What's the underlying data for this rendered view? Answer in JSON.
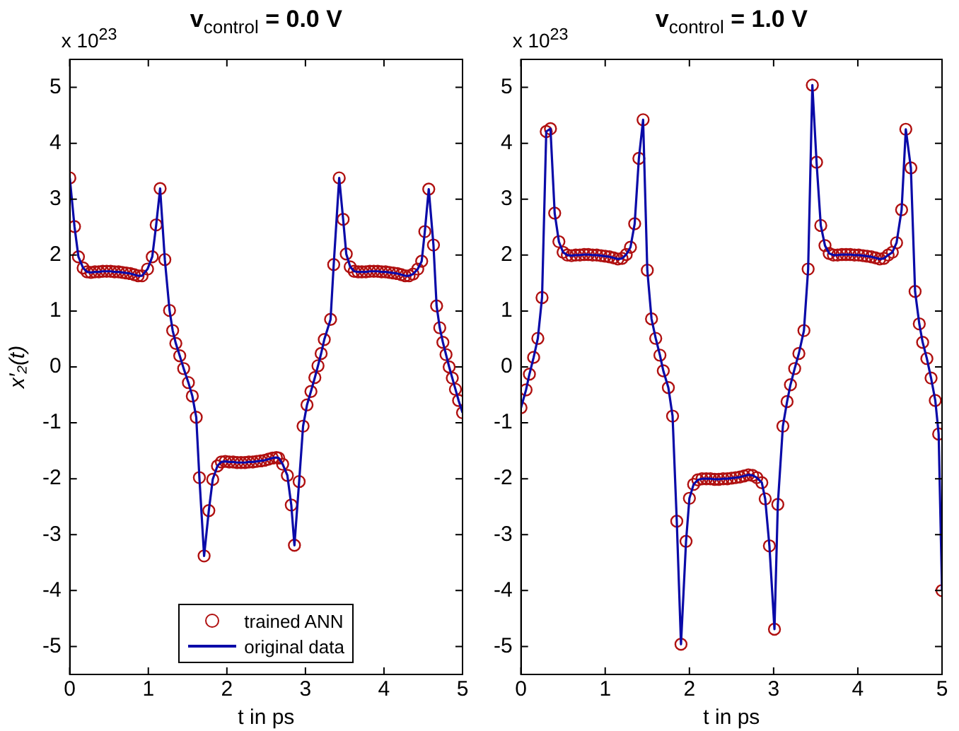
{
  "chart_data": [
    {
      "type": "line",
      "title": "v$_{control}$ = 0.0 V",
      "xlabel": "t in ps",
      "ylabel": "x′₂(t)",
      "annotations": [
        "x 10$^{23}$"
      ],
      "xlim": [
        0,
        5
      ],
      "xticks": [
        0,
        1,
        2,
        3,
        4,
        5
      ],
      "ylim": [
        -5.5,
        5.5
      ],
      "yticks": [
        -5,
        -4,
        -3,
        -2,
        -1,
        0,
        1,
        2,
        3,
        4,
        5
      ],
      "grid": false,
      "legend": "bottom",
      "x": [
        0,
        0.06,
        0.11,
        0.17,
        0.22,
        0.27,
        0.32,
        0.37,
        0.42,
        0.47,
        0.52,
        0.57,
        0.62,
        0.67,
        0.72,
        0.77,
        0.82,
        0.87,
        0.92,
        0.99,
        1.05,
        1.1,
        1.15,
        1.21,
        1.27,
        1.31,
        1.35,
        1.4,
        1.45,
        1.51,
        1.56,
        1.61,
        1.65,
        1.71,
        1.77,
        1.82,
        1.88,
        1.93,
        1.98,
        2.03,
        2.08,
        2.13,
        2.18,
        2.23,
        2.28,
        2.33,
        2.38,
        2.43,
        2.48,
        2.53,
        2.58,
        2.63,
        2.66,
        2.71,
        2.77,
        2.82,
        2.86,
        2.92,
        2.97,
        3.02,
        3.07,
        3.12,
        3.16,
        3.2,
        3.24,
        3.32,
        3.36,
        3.43,
        3.48,
        3.52,
        3.57,
        3.62,
        3.67,
        3.72,
        3.77,
        3.82,
        3.87,
        3.92,
        3.97,
        4.02,
        4.07,
        4.12,
        4.17,
        4.22,
        4.27,
        4.32,
        4.37,
        4.43,
        4.48,
        4.52,
        4.57,
        4.63,
        4.67,
        4.71,
        4.75,
        4.79,
        4.83,
        4.87,
        4.91,
        4.95,
        5.0
      ],
      "series": [
        {
          "name": "trained ANN",
          "type": "scatter",
          "marker": "circle",
          "color": "#b01010",
          "values": [
            3.38,
            2.51,
            1.97,
            1.77,
            1.7,
            1.69,
            1.7,
            1.7,
            1.71,
            1.71,
            1.71,
            1.7,
            1.7,
            1.69,
            1.68,
            1.67,
            1.65,
            1.63,
            1.63,
            1.75,
            1.97,
            2.54,
            3.19,
            1.92,
            1.01,
            0.65,
            0.42,
            0.2,
            -0.03,
            -0.28,
            -0.52,
            -0.9,
            -1.98,
            -3.38,
            -2.57,
            -2.01,
            -1.77,
            -1.7,
            -1.69,
            -1.7,
            -1.7,
            -1.71,
            -1.71,
            -1.71,
            -1.7,
            -1.7,
            -1.69,
            -1.68,
            -1.67,
            -1.65,
            -1.63,
            -1.62,
            -1.63,
            -1.74,
            -1.94,
            -2.47,
            -3.19,
            -2.05,
            -1.06,
            -0.68,
            -0.44,
            -0.19,
            0.02,
            0.24,
            0.49,
            0.85,
            1.83,
            3.38,
            2.64,
            2.02,
            1.79,
            1.71,
            1.7,
            1.7,
            1.7,
            1.71,
            1.71,
            1.71,
            1.7,
            1.7,
            1.69,
            1.68,
            1.67,
            1.65,
            1.63,
            1.63,
            1.66,
            1.75,
            1.89,
            2.42,
            3.18,
            2.18,
            1.09,
            0.7,
            0.44,
            0.22,
            0.0,
            -0.2,
            -0.4,
            -0.6,
            -0.82
          ]
        },
        {
          "name": "original data",
          "type": "line",
          "marker": "none",
          "line_style": "solid",
          "color": "#0a0aa8",
          "values": [
            3.38,
            2.51,
            1.97,
            1.77,
            1.7,
            1.69,
            1.7,
            1.7,
            1.71,
            1.71,
            1.71,
            1.7,
            1.7,
            1.69,
            1.68,
            1.67,
            1.65,
            1.63,
            1.63,
            1.75,
            1.97,
            2.54,
            3.19,
            1.92,
            1.01,
            0.65,
            0.42,
            0.2,
            -0.03,
            -0.28,
            -0.52,
            -0.9,
            -1.98,
            -3.38,
            -2.57,
            -2.01,
            -1.77,
            -1.7,
            -1.69,
            -1.7,
            -1.7,
            -1.71,
            -1.71,
            -1.71,
            -1.7,
            -1.7,
            -1.69,
            -1.68,
            -1.67,
            -1.65,
            -1.63,
            -1.62,
            -1.63,
            -1.74,
            -1.94,
            -2.47,
            -3.19,
            -2.05,
            -1.06,
            -0.68,
            -0.44,
            -0.19,
            0.02,
            0.24,
            0.49,
            0.85,
            1.83,
            3.38,
            2.64,
            2.02,
            1.79,
            1.71,
            1.7,
            1.7,
            1.7,
            1.71,
            1.71,
            1.71,
            1.7,
            1.7,
            1.69,
            1.68,
            1.67,
            1.65,
            1.63,
            1.63,
            1.66,
            1.75,
            1.89,
            2.42,
            3.18,
            2.18,
            1.09,
            0.7,
            0.44,
            0.22,
            0.0,
            -0.2,
            -0.4,
            -0.6,
            -0.82
          ]
        }
      ]
    },
    {
      "type": "line",
      "title": "v$_{control}$ = 1.0 V",
      "xlabel": "t in ps",
      "annotations": [
        "x 10$^{23}$"
      ],
      "xlim": [
        0,
        5
      ],
      "xticks": [
        0,
        1,
        2,
        3,
        4,
        5
      ],
      "ylim": [
        -5.5,
        5.5
      ],
      "yticks": [
        -5,
        -4,
        -3,
        -2,
        -1,
        0,
        1,
        2,
        3,
        4,
        5
      ],
      "grid": false,
      "x": [
        0,
        0.06,
        0.1,
        0.15,
        0.2,
        0.25,
        0.3,
        0.35,
        0.4,
        0.45,
        0.5,
        0.55,
        0.6,
        0.65,
        0.7,
        0.75,
        0.8,
        0.85,
        0.9,
        0.95,
        1.0,
        1.05,
        1.1,
        1.15,
        1.2,
        1.25,
        1.3,
        1.35,
        1.4,
        1.45,
        1.5,
        1.55,
        1.6,
        1.65,
        1.69,
        1.75,
        1.8,
        1.85,
        1.9,
        1.96,
        2.0,
        2.05,
        2.1,
        2.15,
        2.2,
        2.25,
        2.3,
        2.35,
        2.4,
        2.45,
        2.5,
        2.55,
        2.6,
        2.65,
        2.7,
        2.75,
        2.8,
        2.86,
        2.9,
        2.95,
        3.01,
        3.05,
        3.11,
        3.16,
        3.2,
        3.25,
        3.3,
        3.36,
        3.41,
        3.46,
        3.51,
        3.56,
        3.61,
        3.66,
        3.71,
        3.76,
        3.81,
        3.86,
        3.91,
        3.96,
        4.01,
        4.06,
        4.11,
        4.16,
        4.21,
        4.26,
        4.31,
        4.36,
        4.41,
        4.46,
        4.52,
        4.57,
        4.63,
        4.68,
        4.73,
        4.77,
        4.82,
        4.87,
        4.92,
        4.96,
        5.0
      ],
      "series": [
        {
          "type": "scatter",
          "marker": "circle",
          "color": "#b01010",
          "values": [
            -0.73,
            -0.41,
            -0.13,
            0.17,
            0.51,
            1.24,
            4.21,
            4.26,
            2.75,
            2.24,
            2.05,
            2.0,
            1.99,
            2.0,
            2.0,
            2.01,
            2.01,
            2.0,
            2.0,
            1.99,
            1.98,
            1.97,
            1.95,
            1.93,
            1.94,
            2.01,
            2.14,
            2.56,
            3.73,
            4.42,
            1.73,
            0.86,
            0.51,
            0.21,
            -0.07,
            -0.37,
            -0.88,
            -2.76,
            -4.96,
            -3.12,
            -2.35,
            -2.1,
            -2.02,
            -2.0,
            -2.0,
            -2.0,
            -2.01,
            -2.01,
            -2.0,
            -2.0,
            -1.99,
            -1.98,
            -1.97,
            -1.95,
            -1.93,
            -1.94,
            -1.98,
            -2.07,
            -2.36,
            -3.2,
            -4.69,
            -2.46,
            -1.06,
            -0.62,
            -0.32,
            -0.03,
            0.24,
            0.65,
            1.75,
            5.04,
            3.66,
            2.53,
            2.17,
            2.03,
            2.0,
            2.0,
            2.01,
            2.01,
            2.01,
            2.0,
            2.0,
            1.99,
            1.98,
            1.97,
            1.95,
            1.93,
            1.94,
            2.0,
            2.05,
            2.22,
            2.81,
            4.25,
            3.56,
            1.35,
            0.77,
            0.44,
            0.15,
            -0.2,
            -0.6,
            -1.2,
            -4.0
          ]
        },
        {
          "type": "line",
          "marker": "none",
          "line_style": "solid",
          "color": "#0a0aa8",
          "values": [
            -0.73,
            -0.41,
            -0.13,
            0.17,
            0.51,
            1.24,
            4.21,
            4.26,
            2.75,
            2.24,
            2.05,
            2.0,
            1.99,
            2.0,
            2.0,
            2.01,
            2.01,
            2.0,
            2.0,
            1.99,
            1.98,
            1.97,
            1.95,
            1.93,
            1.94,
            2.01,
            2.14,
            2.56,
            3.73,
            4.42,
            1.73,
            0.86,
            0.51,
            0.21,
            -0.07,
            -0.37,
            -0.88,
            -2.76,
            -4.96,
            -3.12,
            -2.35,
            -2.1,
            -2.02,
            -2.0,
            -2.0,
            -2.0,
            -2.01,
            -2.01,
            -2.0,
            -2.0,
            -1.99,
            -1.98,
            -1.97,
            -1.95,
            -1.93,
            -1.94,
            -1.98,
            -2.07,
            -2.36,
            -3.2,
            -4.69,
            -2.46,
            -1.06,
            -0.62,
            -0.32,
            -0.03,
            0.24,
            0.65,
            1.75,
            5.04,
            3.66,
            2.53,
            2.17,
            2.03,
            2.0,
            2.0,
            2.01,
            2.01,
            2.01,
            2.0,
            2.0,
            1.99,
            1.98,
            1.97,
            1.95,
            1.93,
            1.94,
            2.0,
            2.05,
            2.22,
            2.81,
            4.25,
            3.56,
            1.35,
            0.77,
            0.44,
            0.15,
            -0.2,
            -0.6,
            -1.2,
            -4.0
          ]
        }
      ]
    }
  ]
}
